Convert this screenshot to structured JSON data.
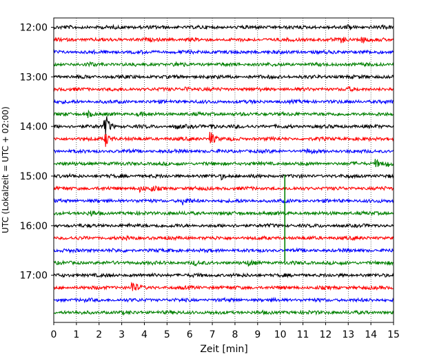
{
  "chart_data": {
    "type": "line",
    "title": "",
    "xlabel": "Zeit  [min]",
    "ylabel": "UTC (Lokalzeit = UTC + 02:00)",
    "xlim": [
      0,
      15
    ],
    "x_ticks": [
      "0",
      "1",
      "2",
      "3",
      "4",
      "5",
      "6",
      "7",
      "8",
      "9",
      "10",
      "11",
      "12",
      "13",
      "14",
      "15"
    ],
    "y_ticks": [
      {
        "label": "12:00",
        "trace_index": 0
      },
      {
        "label": "13:00",
        "trace_index": 4
      },
      {
        "label": "14:00",
        "trace_index": 8
      },
      {
        "label": "15:00",
        "trace_index": 12
      },
      {
        "label": "16:00",
        "trace_index": 16
      },
      {
        "label": "17:00",
        "trace_index": 20
      }
    ],
    "grid": "vertical dotted",
    "trace_interval_min": 15,
    "trace_colors": [
      "#000000",
      "#ff0000",
      "#0000ff",
      "#008000"
    ],
    "traces": [
      {
        "start": "12:00",
        "events": [
          {
            "t": 13.0,
            "amp": 0.4
          }
        ]
      },
      {
        "start": "12:15",
        "events": [
          {
            "t": 12.7,
            "amp": 0.5
          },
          {
            "t": 13.6,
            "amp": 0.5
          }
        ]
      },
      {
        "start": "12:30",
        "events": []
      },
      {
        "start": "12:45",
        "events": [
          {
            "t": 1.5,
            "amp": 0.3
          },
          {
            "t": 5.4,
            "amp": 0.3
          }
        ]
      },
      {
        "start": "13:00",
        "events": []
      },
      {
        "start": "13:15",
        "events": [
          {
            "t": 5.8,
            "amp": 0.4
          },
          {
            "t": 12.9,
            "amp": 0.3
          }
        ]
      },
      {
        "start": "13:30",
        "events": []
      },
      {
        "start": "13:45",
        "events": [
          {
            "t": 1.5,
            "amp": 0.5
          },
          {
            "t": 3.7,
            "amp": 0.3
          }
        ]
      },
      {
        "start": "14:00",
        "events": [
          {
            "t": 2.25,
            "amp": 2.5
          },
          {
            "t": 5.4,
            "amp": 0.4
          },
          {
            "t": 6.9,
            "amp": 0.5
          }
        ]
      },
      {
        "start": "14:15",
        "events": [
          {
            "t": 2.28,
            "amp": 1.3
          },
          {
            "t": 6.9,
            "amp": 1.4
          }
        ]
      },
      {
        "start": "14:30",
        "events": [
          {
            "t": 11.2,
            "amp": 0.3
          }
        ]
      },
      {
        "start": "14:45",
        "events": [
          {
            "t": 14.2,
            "amp": 0.9
          },
          {
            "t": 14.7,
            "amp": 0.5
          }
        ]
      },
      {
        "start": "15:00",
        "events": [
          {
            "t": 7.4,
            "amp": 0.4
          }
        ]
      },
      {
        "start": "15:15",
        "events": [
          {
            "t": 3.8,
            "amp": 0.5
          },
          {
            "t": 4.3,
            "amp": 0.4
          }
        ]
      },
      {
        "start": "15:30",
        "events": [
          {
            "t": 5.7,
            "amp": 0.7
          }
        ]
      },
      {
        "start": "15:45",
        "events": [
          {
            "t": 1.6,
            "amp": 0.5
          }
        ]
      },
      {
        "start": "16:00",
        "events": [
          {
            "t": 4.5,
            "amp": 0.3
          }
        ]
      },
      {
        "start": "16:15",
        "events": []
      },
      {
        "start": "16:30",
        "events": []
      },
      {
        "start": "16:45",
        "events": [
          {
            "t": 6.2,
            "amp": 0.3
          },
          {
            "t": 8.6,
            "amp": 0.4
          }
        ]
      },
      {
        "start": "17:00",
        "events": []
      },
      {
        "start": "17:15",
        "events": [
          {
            "t": 3.45,
            "amp": 1.3
          }
        ]
      },
      {
        "start": "17:30",
        "events": []
      },
      {
        "start": "17:45",
        "events": []
      }
    ],
    "annotations": [
      {
        "type": "vertical-spike",
        "x": 10.2,
        "color": "#008000",
        "from_trace": 12,
        "to_trace": 19
      }
    ]
  }
}
